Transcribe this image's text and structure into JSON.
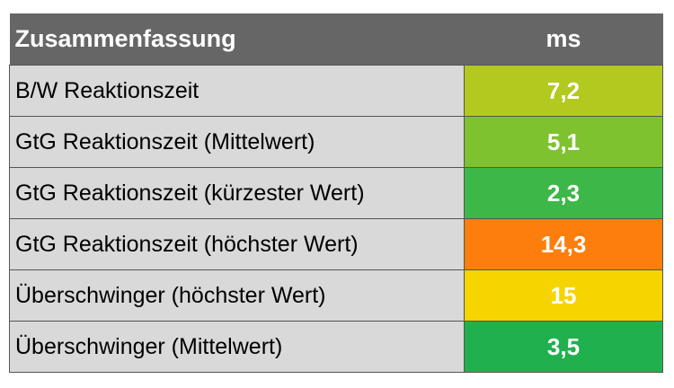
{
  "table": {
    "header": [
      "Zusammenfassung",
      "ms"
    ],
    "rows": [
      {
        "label": "B/W Reaktionszeit",
        "value": "7,2",
        "color": "#b4c91f"
      },
      {
        "label": "GtG Reaktionszeit (Mittelwert)",
        "value": "5,1",
        "color": "#7ec22f"
      },
      {
        "label": "GtG Reaktionszeit (kürzester Wert)",
        "value": "2,3",
        "color": "#3db748"
      },
      {
        "label": "GtG Reaktionszeit (höchster Wert)",
        "value": "14,3",
        "color": "#fd7e0c"
      },
      {
        "label": "Überschwinger (höchster Wert)",
        "value": "15",
        "color": "#f6d400"
      },
      {
        "label": "Überschwinger (Mittelwert)",
        "value": "3,5",
        "color": "#21b04e"
      }
    ]
  }
}
